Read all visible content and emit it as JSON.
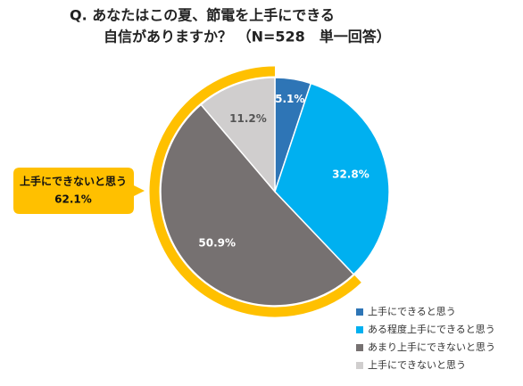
{
  "chart_data": {
    "type": "pie",
    "title": [
      "Q. あなたはこの夏、節電を上手にできる",
      "自信がありますか？ （N=528　単一回答）"
    ],
    "categories": [
      "上手にできると思う",
      "ある程度上手にできると思う",
      "あまり上手にできないと思う",
      "上手にできないと思う"
    ],
    "values": [
      5.1,
      32.8,
      50.9,
      11.2
    ],
    "value_labels": [
      "5.1%",
      "32.8%",
      "50.9%",
      "11.2%"
    ],
    "colors": [
      "#2e75b6",
      "#00b0f0",
      "#767171",
      "#d0cece"
    ],
    "annotation": {
      "label": "上手にできないと思う",
      "value": 62.1,
      "value_label": "62.1%",
      "color": "#ffc000"
    },
    "legend": "bottom-right"
  }
}
